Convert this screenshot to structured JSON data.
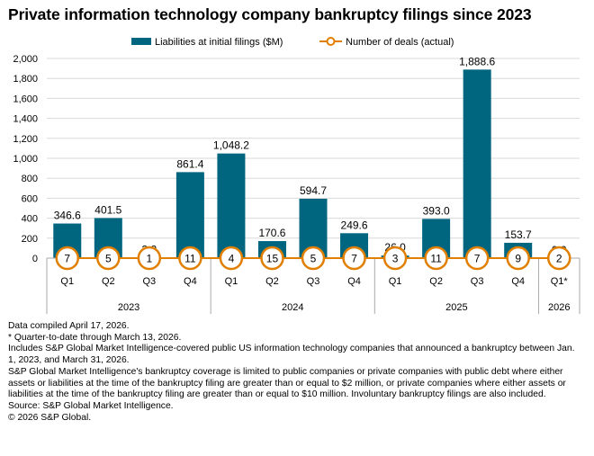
{
  "title": "Private information technology company bankruptcy filings since 2023",
  "colors": {
    "bar": "#006680",
    "line": "#e07f00",
    "circle_fill": "#ffffff",
    "grid": "#d9d9d9",
    "axis": "#aaaaaa"
  },
  "chart_data": {
    "type": "bar",
    "title": "Private information technology company bankruptcy filings since 2023",
    "categories": [
      "Q1",
      "Q2",
      "Q3",
      "Q4",
      "Q1",
      "Q2",
      "Q3",
      "Q4",
      "Q1",
      "Q2",
      "Q3",
      "Q4",
      "Q1*"
    ],
    "years": [
      {
        "label": "2023",
        "count": 4
      },
      {
        "label": "2024",
        "count": 4
      },
      {
        "label": "2025",
        "count": 4
      },
      {
        "label": "2026",
        "count": 1
      }
    ],
    "series": [
      {
        "name": "Liabilities at initial filings ($M)",
        "kind": "bar",
        "values": [
          346.6,
          401.5,
          3.2,
          861.4,
          1048.2,
          170.6,
          594.7,
          249.6,
          26.0,
          393.0,
          1888.6,
          153.7,
          0.0
        ],
        "labels": [
          "346.6",
          "401.5",
          "3.2",
          "861.4",
          "1,048.2",
          "170.6",
          "594.7",
          "249.6",
          "26.0",
          "393.0",
          "1,888.6",
          "153.7",
          "0.0"
        ]
      },
      {
        "name": "Number of deals (actual)",
        "kind": "line",
        "values": [
          7,
          5,
          1,
          11,
          4,
          15,
          5,
          7,
          3,
          11,
          7,
          9,
          2
        ]
      }
    ],
    "ylim": [
      0,
      2000
    ],
    "yticks": [
      0,
      200,
      400,
      600,
      800,
      1000,
      1200,
      1400,
      1600,
      1800,
      2000
    ],
    "ytick_labels": [
      "0",
      "200",
      "400",
      "600",
      "800",
      "1,000",
      "1,200",
      "1,400",
      "1,600",
      "1,800",
      "2,000"
    ],
    "legend": "top-center",
    "grid": true
  },
  "footnotes": [
    "Data compiled April 17, 2026.",
    "* Quarter-to-date through March 13, 2026.",
    "Includes S&P Global Market Intelligence-covered public US information technology companies that announced a bankruptcy between Jan. 1, 2023, and March 31, 2026.",
    "S&P Global Market Intelligence's bankruptcy coverage is limited to public companies or private companies with public debt where either assets or liabilities at the time of the bankruptcy filing are greater than or equal to $2 million, or private companies where either assets or liabilities at the time of the bankruptcy filing are greater than or equal to $10 million. Involuntary bankruptcy filings are also included.",
    "Source: S&P Global Market Intelligence.",
    "© 2026 S&P Global."
  ]
}
